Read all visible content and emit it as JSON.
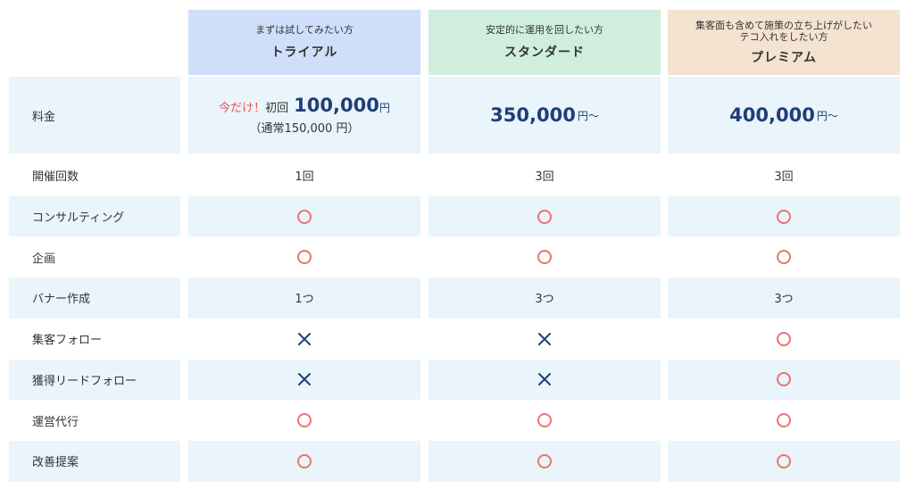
{
  "colors": {
    "trial_header": "#cfdffa",
    "standard_header": "#cfeedd",
    "premium_header": "#f5e3d2",
    "band": "#e9f4fb",
    "circle": "#e9756d",
    "cross": "#1f3e78",
    "price": "#1f3e78",
    "promo": "#e9564b"
  },
  "plans": [
    {
      "id": "trial",
      "subtitle": "まずは試してみたい方",
      "name": "トライアル"
    },
    {
      "id": "standard",
      "subtitle": "安定的に運用を回したい方",
      "name": "スタンダード"
    },
    {
      "id": "premium",
      "subtitle_line1": "集客面も含めて施策の立ち上げがしたい",
      "subtitle_line2": "テコ入れをしたい方",
      "name": "プレミアム"
    }
  ],
  "fee": {
    "label": "料金",
    "trial": {
      "promo": "今だけ！",
      "first": "初回",
      "amount": "100,000",
      "yen": "円",
      "note": "（通常150,000 円）"
    },
    "standard": {
      "amount": "350,000",
      "suffix": "円〜"
    },
    "premium": {
      "amount": "400,000",
      "suffix": "円〜"
    }
  },
  "rows": [
    {
      "label": "開催回数",
      "values": [
        "1回",
        "3回",
        "3回"
      ]
    },
    {
      "label": "コンサルティング",
      "values": [
        "circle",
        "circle",
        "circle"
      ]
    },
    {
      "label": "企画",
      "values": [
        "circle",
        "circle",
        "circle"
      ]
    },
    {
      "label": "バナー作成",
      "values": [
        "1つ",
        "3つ",
        "3つ"
      ]
    },
    {
      "label": "集客フォロー",
      "values": [
        "cross",
        "cross",
        "circle"
      ]
    },
    {
      "label": "獲得リードフォロー",
      "values": [
        "cross",
        "cross",
        "circle"
      ]
    },
    {
      "label": "運営代行",
      "values": [
        "circle",
        "circle",
        "circle"
      ]
    },
    {
      "label": "改善提案",
      "values": [
        "circle",
        "circle",
        "circle"
      ]
    }
  ]
}
